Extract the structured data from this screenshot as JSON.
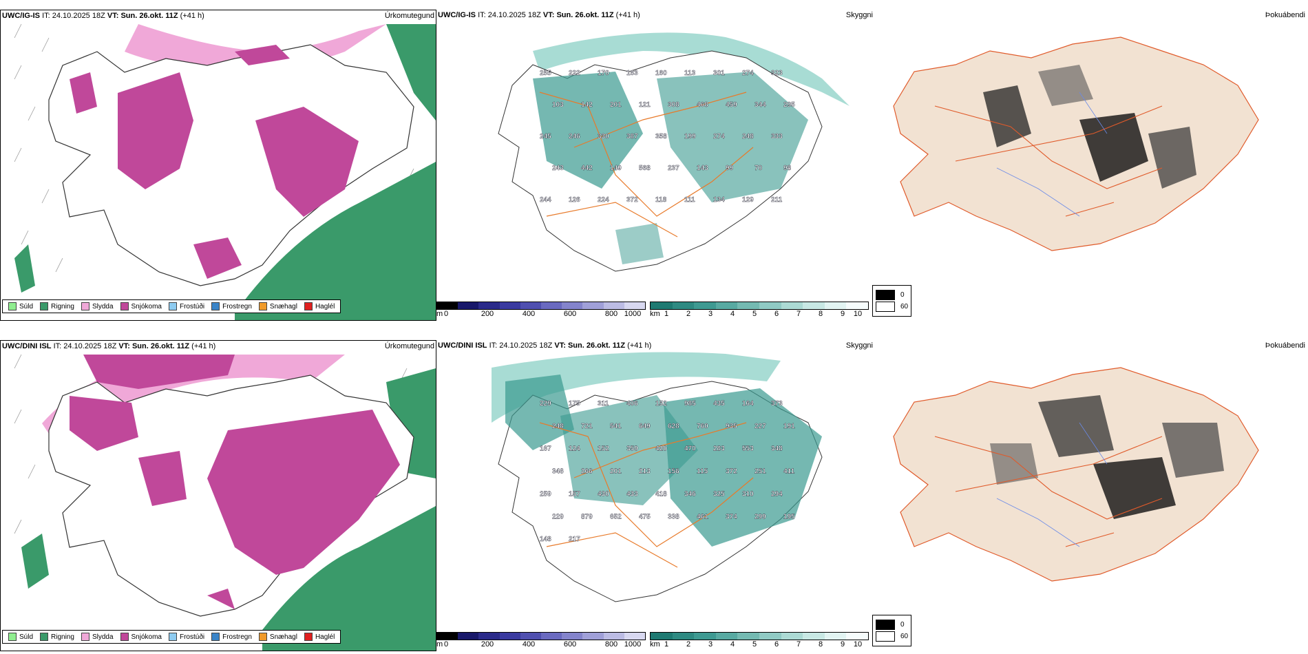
{
  "colors": {
    "drizzle": "#90ee90",
    "rain": "#3a9a6a",
    "sleet": "#f0a8d8",
    "snow": "#c0489a",
    "freezing_drizzle": "#8ecbf0",
    "freezing_rain": "#3a84c8",
    "snow_grains": "#f09a2a",
    "hail": "#e02020",
    "vis_teal": "#3a9a90",
    "map_bg": "#ffffff",
    "land_fog": "#f2e2d2",
    "roads": "#e87a2a"
  },
  "rows": [
    {
      "model": "UWC/IG-IS",
      "it_label": "IT:",
      "it_value": "24.10.2025 18Z",
      "vt_label": "VT:",
      "vt_value": "Sun. 26.okt. 11Z",
      "lead": "(+41 h)",
      "panels": {
        "precip": {
          "name": "Úrkomutegund"
        },
        "visibility": {
          "name": "Skyggni",
          "labels": [
            "255",
            "222",
            "170",
            "163",
            "160",
            "113",
            "301",
            "274",
            "323",
            "103",
            "142",
            "201",
            "121",
            "308",
            "468",
            "459",
            "344",
            "295",
            "245",
            "246",
            "330",
            "387",
            "358",
            "199",
            "274",
            "248",
            "333",
            "243",
            "442",
            "149",
            "568",
            "237",
            "143",
            "99",
            "70",
            "98",
            "244",
            "126",
            "224",
            "372",
            "118",
            "111",
            "134",
            "129",
            "211"
          ]
        },
        "fog": {
          "name": "Þokuábendi"
        }
      }
    },
    {
      "model": "UWC/DINI ISL",
      "it_label": "IT:",
      "it_value": "24.10.2025 18Z",
      "vt_label": "VT:",
      "vt_value": "Sun. 26.okt. 11Z",
      "lead": "(+41 h)",
      "panels": {
        "precip": {
          "name": "Úrkomutegund"
        },
        "visibility": {
          "name": "Skyggni",
          "labels": [
            "229",
            "175",
            "311",
            "406",
            "152",
            "985",
            "435",
            "164",
            "373",
            "248",
            "721",
            "541",
            "649",
            "628",
            "760",
            "935",
            "227",
            "191",
            "167",
            "124",
            "152",
            "359",
            "420",
            "470",
            "283",
            "553",
            "348",
            "346",
            "266",
            "201",
            "213",
            "156",
            "115",
            "372",
            "251",
            "411",
            "259",
            "157",
            "430",
            "433",
            "418",
            "346",
            "325",
            "310",
            "294",
            "229",
            "879",
            "652",
            "475",
            "338",
            "461",
            "374",
            "299",
            "195",
            "148",
            "217"
          ]
        },
        "fog": {
          "name": "Þokuábendi"
        }
      }
    }
  ],
  "precip_legend": [
    "Súld",
    "Rigning",
    "Slydda",
    "Snjókoma",
    "Frostúði",
    "Frostregn",
    "Snæhagl",
    "Haglél"
  ],
  "height_bar": {
    "unit": "m",
    "ticks": [
      "0",
      "200",
      "400",
      "600",
      "800",
      "1000"
    ]
  },
  "vis_bar": {
    "unit": "km",
    "ticks": [
      "1",
      "2",
      "3",
      "4",
      "5",
      "6",
      "7",
      "8",
      "9",
      "10"
    ]
  },
  "fog_legend": {
    "dark": "0",
    "light": "60"
  }
}
